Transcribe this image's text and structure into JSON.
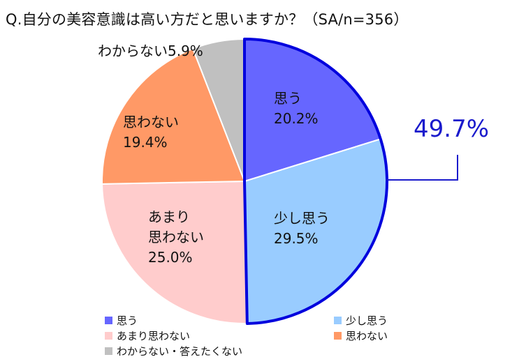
{
  "title": "Q.自分の美容意識は高い方だと思いますか？（SA/n=356）",
  "callout": {
    "text": "49.7%",
    "color": "#1a1acc"
  },
  "chart_data": {
    "type": "pie",
    "title": "Q.自分の美容意識は高い方だと思いますか？（SA/n=356）",
    "slices": [
      {
        "label": "思う",
        "value": 20.2,
        "value_label": "20.2%",
        "legend": "思う",
        "color": "#6666ff",
        "slice_lines": [
          "思う",
          "20.2%"
        ]
      },
      {
        "label": "少し思う",
        "value": 29.5,
        "value_label": "29.5%",
        "legend": "少し思う",
        "color": "#99ccff",
        "slice_lines": [
          "少し思う",
          "29.5%"
        ]
      },
      {
        "label": "あまり思わない",
        "value": 25.0,
        "value_label": "25.0%",
        "legend": "あまり思わない",
        "color": "#ffcccc",
        "slice_lines": [
          "あまり",
          "思わない",
          "25.0%"
        ]
      },
      {
        "label": "思わない",
        "value": 19.4,
        "value_label": "19.4%",
        "legend": "思わない",
        "color": "#ff9966",
        "slice_lines": [
          "思わない",
          "19.4%"
        ]
      },
      {
        "label": "わからない・答えたくない",
        "value": 5.9,
        "value_label": "5.9%",
        "legend": "わからない・答えたくない",
        "color": "#c0c0c0",
        "slice_lines": [
          "わからない5.9%"
        ]
      }
    ],
    "highlight": {
      "slices": [
        "思う",
        "少し思う"
      ],
      "total": "49.7%",
      "outline_color": "#0000dd"
    },
    "legend_position": "bottom"
  }
}
